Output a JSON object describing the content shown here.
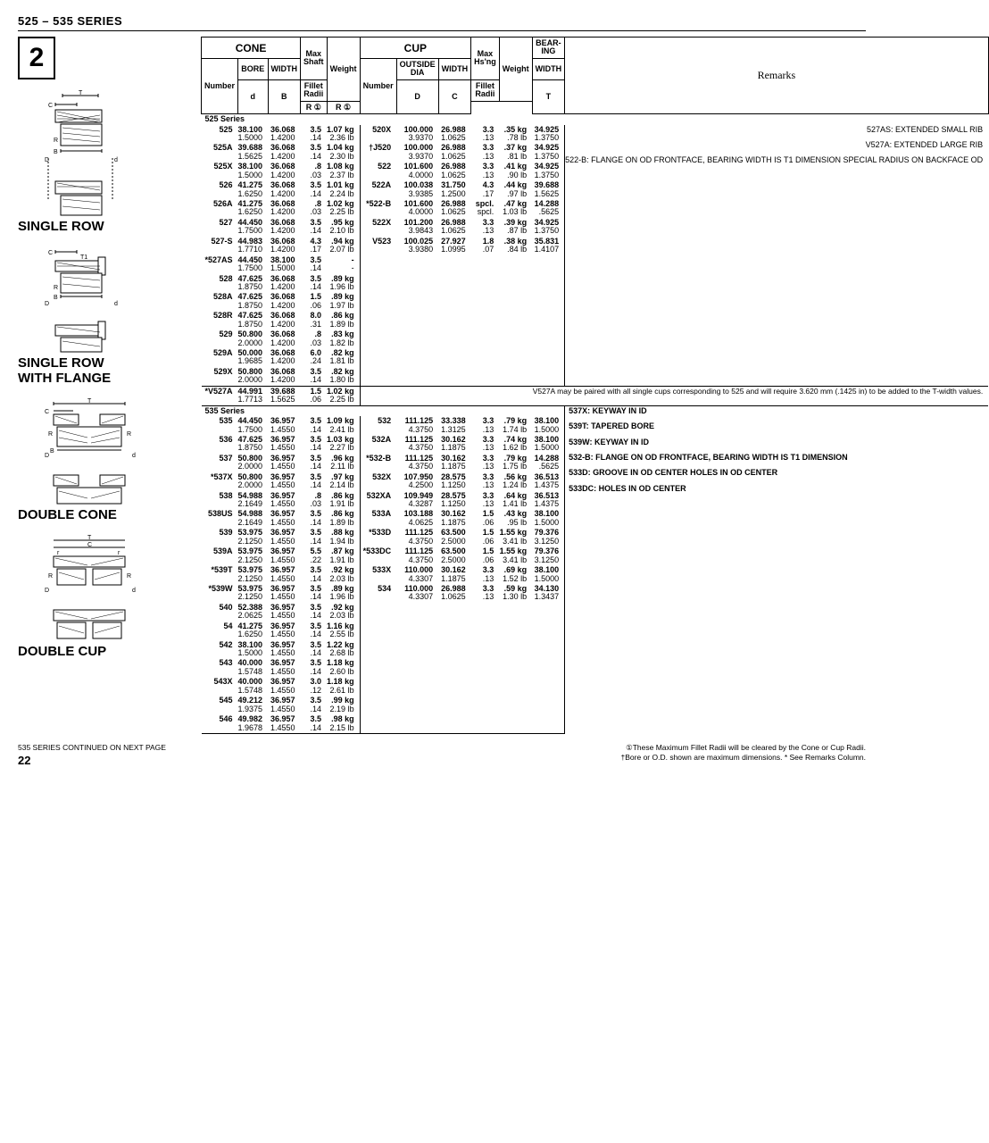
{
  "page": {
    "series_title": "525 – 535 SERIES",
    "badge": "2",
    "footer_left": "535 SERIES CONTINUED ON NEXT PAGE",
    "footer_right1": "①These Maximum Fillet Radii will be cleared by the Cone or Cup Radii.",
    "footer_right2": "†Bore or O.D. shown are maximum dimensions.   * See Remarks Column.",
    "pagenum": "22"
  },
  "diagrams": {
    "single_row": "SINGLE ROW",
    "single_row_flange": "SINGLE ROW\nWITH FLANGE",
    "double_cone": "DOUBLE CONE",
    "double_cup": "DOUBLE CUP"
  },
  "headers": {
    "cone": "CONE",
    "cup": "CUP",
    "bearing": "BEAR-\nING",
    "remarks": "Remarks",
    "number": "Number",
    "bore": "BORE",
    "width": "WIDTH",
    "max_shaft": "Max\nShaft",
    "fillet_radii": "Fillet\nRadii",
    "r": "R ①",
    "weight": "Weight",
    "outside_dia": "OUTSIDE\nDIA",
    "max_hsng": "Max\nHs'ng",
    "d": "d",
    "B": "B",
    "D": "D",
    "C": "C",
    "T": "T"
  },
  "flange_note": "V527A may be paired with all single cups corresponding to 525 and will require 3.620 mm (.1425 in) to be added to the T-width values.",
  "series525_label": "525 Series",
  "series535_label": "535 Series",
  "remarks525": [
    "527AS: EXTENDED SMALL RIB",
    "V527A: EXTENDED LARGE RIB",
    "522-B: FLANGE ON OD FRONTFACE, BEARING WIDTH IS T1 DIMENSION SPECIAL RADIUS ON BACKFACE OD"
  ],
  "remarks535": [
    "537X: KEYWAY IN ID",
    "539T: TAPERED BORE",
    "539W: KEYWAY IN ID",
    "532-B: FLANGE ON OD FRONTFACE, BEARING WIDTH IS T1 DIMENSION",
    "533D: GROOVE IN OD CENTER HOLES IN OD CENTER",
    "533DC: HOLES IN OD CENTER"
  ],
  "rows525": [
    {
      "cone": "525",
      "bore": [
        "38.100",
        "1.5000"
      ],
      "w": [
        "36.068",
        "1.4200"
      ],
      "r": [
        "3.5",
        ".14"
      ],
      "wt": [
        "1.07 kg",
        "2.36 lb"
      ],
      "cup": "520X",
      "od": [
        "100.000",
        "3.9370"
      ],
      "cw": [
        "26.988",
        "1.0625"
      ],
      "hr": [
        "3.3",
        ".13"
      ],
      "wt2": [
        ".35 kg",
        ".78 lb"
      ],
      "T": [
        "34.925",
        "1.3750"
      ]
    },
    {
      "cone": "525A",
      "bore": [
        "39.688",
        "1.5625"
      ],
      "w": [
        "36.068",
        "1.4200"
      ],
      "r": [
        "3.5",
        ".14"
      ],
      "wt": [
        "1.04 kg",
        "2.30 lb"
      ],
      "cup": "†J520",
      "od": [
        "100.000",
        "3.9370"
      ],
      "cw": [
        "26.988",
        "1.0625"
      ],
      "hr": [
        "3.3",
        ".13"
      ],
      "wt2": [
        ".37 kg",
        ".81 lb"
      ],
      "T": [
        "34.925",
        "1.3750"
      ]
    },
    {
      "cone": "525X",
      "bore": [
        "38.100",
        "1.5000"
      ],
      "w": [
        "36.068",
        "1.4200"
      ],
      "r": [
        ".8",
        ".03"
      ],
      "wt": [
        "1.08 kg",
        "2.37 lb"
      ],
      "cup": "522",
      "od": [
        "101.600",
        "4.0000"
      ],
      "cw": [
        "26.988",
        "1.0625"
      ],
      "hr": [
        "3.3",
        ".13"
      ],
      "wt2": [
        ".41 kg",
        ".90 lb"
      ],
      "T": [
        "34.925",
        "1.3750"
      ]
    },
    {
      "cone": "526",
      "bore": [
        "41.275",
        "1.6250"
      ],
      "w": [
        "36.068",
        "1.4200"
      ],
      "r": [
        "3.5",
        ".14"
      ],
      "wt": [
        "1.01 kg",
        "2.24 lb"
      ],
      "cup": "522A",
      "od": [
        "100.038",
        "3.9385"
      ],
      "cw": [
        "31.750",
        "1.2500"
      ],
      "hr": [
        "4.3",
        ".17"
      ],
      "wt2": [
        ".44 kg",
        ".97 lb"
      ],
      "T": [
        "39.688",
        "1.5625"
      ]
    },
    {
      "cone": "526A",
      "bore": [
        "41.275",
        "1.6250"
      ],
      "w": [
        "36.068",
        "1.4200"
      ],
      "r": [
        ".8",
        ".03"
      ],
      "wt": [
        "1.02 kg",
        "2.25 lb"
      ],
      "cup": "*522-B",
      "od": [
        "101.600",
        "4.0000"
      ],
      "cw": [
        "26.988",
        "1.0625"
      ],
      "hr": [
        "spcl.",
        "spcl."
      ],
      "wt2": [
        ".47 kg",
        "1.03 lb"
      ],
      "T": [
        "14.288",
        ".5625"
      ]
    },
    {
      "cone": "527",
      "bore": [
        "44.450",
        "1.7500"
      ],
      "w": [
        "36.068",
        "1.4200"
      ],
      "r": [
        "3.5",
        ".14"
      ],
      "wt": [
        ".95 kg",
        "2.10 lb"
      ],
      "cup": "522X",
      "od": [
        "101.200",
        "3.9843"
      ],
      "cw": [
        "26.988",
        "1.0625"
      ],
      "hr": [
        "3.3",
        ".13"
      ],
      "wt2": [
        ".39 kg",
        ".87 lb"
      ],
      "T": [
        "34.925",
        "1.3750"
      ]
    },
    {
      "cone": "527-S",
      "bore": [
        "44.983",
        "1.7710"
      ],
      "w": [
        "36.068",
        "1.4200"
      ],
      "r": [
        "4.3",
        ".17"
      ],
      "wt": [
        ".94 kg",
        "2.07 lb"
      ],
      "cup": "V523",
      "od": [
        "100.025",
        "3.9380"
      ],
      "cw": [
        "27.927",
        "1.0995"
      ],
      "hr": [
        "1.8",
        ".07"
      ],
      "wt2": [
        ".38 kg",
        ".84 lb"
      ],
      "T": [
        "35.831",
        "1.4107"
      ]
    },
    {
      "cone": "*527AS",
      "bore": [
        "44.450",
        "1.7500"
      ],
      "w": [
        "38.100",
        "1.5000"
      ],
      "r": [
        "3.5",
        ".14"
      ],
      "wt": [
        "-",
        "-"
      ]
    },
    {
      "cone": "528",
      "bore": [
        "47.625",
        "1.8750"
      ],
      "w": [
        "36.068",
        "1.4200"
      ],
      "r": [
        "3.5",
        ".14"
      ],
      "wt": [
        ".89 kg",
        "1.96 lb"
      ]
    },
    {
      "cone": "528A",
      "bore": [
        "47.625",
        "1.8750"
      ],
      "w": [
        "36.068",
        "1.4200"
      ],
      "r": [
        "1.5",
        ".06"
      ],
      "wt": [
        ".89 kg",
        "1.97 lb"
      ]
    },
    {
      "cone": "528R",
      "bore": [
        "47.625",
        "1.8750"
      ],
      "w": [
        "36.068",
        "1.4200"
      ],
      "r": [
        "8.0",
        ".31"
      ],
      "wt": [
        ".86 kg",
        "1.89 lb"
      ]
    },
    {
      "cone": "529",
      "bore": [
        "50.800",
        "2.0000"
      ],
      "w": [
        "36.068",
        "1.4200"
      ],
      "r": [
        ".8",
        ".03"
      ],
      "wt": [
        ".83 kg",
        "1.82 lb"
      ]
    },
    {
      "cone": "529A",
      "bore": [
        "50.000",
        "1.9685"
      ],
      "w": [
        "36.068",
        "1.4200"
      ],
      "r": [
        "6.0",
        ".24"
      ],
      "wt": [
        ".82 kg",
        "1.81 lb"
      ]
    },
    {
      "cone": "529X",
      "bore": [
        "50.800",
        "2.0000"
      ],
      "w": [
        "36.068",
        "1.4200"
      ],
      "r": [
        "3.5",
        ".14"
      ],
      "wt": [
        ".82 kg",
        "1.80 lb"
      ]
    }
  ],
  "row_v527a": {
    "cone": "*V527A",
    "bore": [
      "44.991",
      "1.7713"
    ],
    "w": [
      "39.688",
      "1.5625"
    ],
    "r": [
      "1.5",
      ".06"
    ],
    "wt": [
      "1.02 kg",
      "2.25 lb"
    ]
  },
  "rows535": [
    {
      "cone": "535",
      "bore": [
        "44.450",
        "1.7500"
      ],
      "w": [
        "36.957",
        "1.4550"
      ],
      "r": [
        "3.5",
        ".14"
      ],
      "wt": [
        "1.09 kg",
        "2.41 lb"
      ],
      "cup": "532",
      "od": [
        "111.125",
        "4.3750"
      ],
      "cw": [
        "33.338",
        "1.3125"
      ],
      "hr": [
        "3.3",
        ".13"
      ],
      "wt2": [
        ".79 kg",
        "1.74 lb"
      ],
      "T": [
        "38.100",
        "1.5000"
      ]
    },
    {
      "cone": "536",
      "bore": [
        "47.625",
        "1.8750"
      ],
      "w": [
        "36.957",
        "1.4550"
      ],
      "r": [
        "3.5",
        ".14"
      ],
      "wt": [
        "1.03 kg",
        "2.27 lb"
      ],
      "cup": "532A",
      "od": [
        "111.125",
        "4.3750"
      ],
      "cw": [
        "30.162",
        "1.1875"
      ],
      "hr": [
        "3.3",
        ".13"
      ],
      "wt2": [
        ".74 kg",
        "1.62 lb"
      ],
      "T": [
        "38.100",
        "1.5000"
      ]
    },
    {
      "cone": "537",
      "bore": [
        "50.800",
        "2.0000"
      ],
      "w": [
        "36.957",
        "1.4550"
      ],
      "r": [
        "3.5",
        ".14"
      ],
      "wt": [
        ".96 kg",
        "2.11 lb"
      ],
      "cup": "*532-B",
      "od": [
        "111.125",
        "4.3750"
      ],
      "cw": [
        "30.162",
        "1.1875"
      ],
      "hr": [
        "3.3",
        ".13"
      ],
      "wt2": [
        ".79 kg",
        "1.75 lb"
      ],
      "T": [
        "14.288",
        ".5625"
      ]
    },
    {
      "cone": "*537X",
      "bore": [
        "50.800",
        "2.0000"
      ],
      "w": [
        "36.957",
        "1.4550"
      ],
      "r": [
        "3.5",
        ".14"
      ],
      "wt": [
        ".97 kg",
        "2.14 lb"
      ],
      "cup": "532X",
      "od": [
        "107.950",
        "4.2500"
      ],
      "cw": [
        "28.575",
        "1.1250"
      ],
      "hr": [
        "3.3",
        ".13"
      ],
      "wt2": [
        ".56 kg",
        "1.24 lb"
      ],
      "T": [
        "36.513",
        "1.4375"
      ]
    },
    {
      "cone": "538",
      "bore": [
        "54.988",
        "2.1649"
      ],
      "w": [
        "36.957",
        "1.4550"
      ],
      "r": [
        ".8",
        ".03"
      ],
      "wt": [
        ".86 kg",
        "1.91 lb"
      ],
      "cup": "532XA",
      "od": [
        "109.949",
        "4.3287"
      ],
      "cw": [
        "28.575",
        "1.1250"
      ],
      "hr": [
        "3.3",
        ".13"
      ],
      "wt2": [
        ".64 kg",
        "1.41 lb"
      ],
      "T": [
        "36.513",
        "1.4375"
      ]
    },
    {
      "cone": "538US",
      "bore": [
        "54.988",
        "2.1649"
      ],
      "w": [
        "36.957",
        "1.4550"
      ],
      "r": [
        "3.5",
        ".14"
      ],
      "wt": [
        ".86 kg",
        "1.89 lb"
      ],
      "cup": "533A",
      "od": [
        "103.188",
        "4.0625"
      ],
      "cw": [
        "30.162",
        "1.1875"
      ],
      "hr": [
        "1.5",
        ".06"
      ],
      "wt2": [
        ".43 kg",
        ".95 lb"
      ],
      "T": [
        "38.100",
        "1.5000"
      ]
    },
    {
      "cone": "539",
      "bore": [
        "53.975",
        "2.1250"
      ],
      "w": [
        "36.957",
        "1.4550"
      ],
      "r": [
        "3.5",
        ".14"
      ],
      "wt": [
        ".88 kg",
        "1.94 lb"
      ],
      "cup": "*533D",
      "od": [
        "111.125",
        "4.3750"
      ],
      "cw": [
        "63.500",
        "2.5000"
      ],
      "hr": [
        "1.5",
        ".06"
      ],
      "wt2": [
        "1.55 kg",
        "3.41 lb"
      ],
      "T": [
        "79.376",
        "3.1250"
      ]
    },
    {
      "cone": "539A",
      "bore": [
        "53.975",
        "2.1250"
      ],
      "w": [
        "36.957",
        "1.4550"
      ],
      "r": [
        "5.5",
        ".22"
      ],
      "wt": [
        ".87 kg",
        "1.91 lb"
      ],
      "cup": "*533DC",
      "od": [
        "111.125",
        "4.3750"
      ],
      "cw": [
        "63.500",
        "2.5000"
      ],
      "hr": [
        "1.5",
        ".06"
      ],
      "wt2": [
        "1.55 kg",
        "3.41 lb"
      ],
      "T": [
        "79.376",
        "3.1250"
      ]
    },
    {
      "cone": "*539T",
      "bore": [
        "53.975",
        "2.1250"
      ],
      "w": [
        "36.957",
        "1.4550"
      ],
      "r": [
        "3.5",
        ".14"
      ],
      "wt": [
        ".92 kg",
        "2.03 lb"
      ],
      "cup": "533X",
      "od": [
        "110.000",
        "4.3307"
      ],
      "cw": [
        "30.162",
        "1.1875"
      ],
      "hr": [
        "3.3",
        ".13"
      ],
      "wt2": [
        ".69 kg",
        "1.52 lb"
      ],
      "T": [
        "38.100",
        "1.5000"
      ]
    },
    {
      "cone": "*539W",
      "bore": [
        "53.975",
        "2.1250"
      ],
      "w": [
        "36.957",
        "1.4550"
      ],
      "r": [
        "3.5",
        ".14"
      ],
      "wt": [
        ".89 kg",
        "1.96 lb"
      ],
      "cup": "534",
      "od": [
        "110.000",
        "4.3307"
      ],
      "cw": [
        "26.988",
        "1.0625"
      ],
      "hr": [
        "3.3",
        ".13"
      ],
      "wt2": [
        ".59 kg",
        "1.30 lb"
      ],
      "T": [
        "34.130",
        "1.3437"
      ]
    },
    {
      "cone": "540",
      "bore": [
        "52.388",
        "2.0625"
      ],
      "w": [
        "36.957",
        "1.4550"
      ],
      "r": [
        "3.5",
        ".14"
      ],
      "wt": [
        ".92 kg",
        "2.03 lb"
      ]
    },
    {
      "cone": "54",
      "bore": [
        "41.275",
        "1.6250"
      ],
      "w": [
        "36.957",
        "1.4550"
      ],
      "r": [
        "3.5",
        ".14"
      ],
      "wt": [
        "1.16 kg",
        "2.55 lb"
      ]
    },
    {
      "cone": "542",
      "bore": [
        "38.100",
        "1.5000"
      ],
      "w": [
        "36.957",
        "1.4550"
      ],
      "r": [
        "3.5",
        ".14"
      ],
      "wt": [
        "1.22 kg",
        "2.68 lb"
      ]
    },
    {
      "cone": "543",
      "bore": [
        "40.000",
        "1.5748"
      ],
      "w": [
        "36.957",
        "1.4550"
      ],
      "r": [
        "3.5",
        ".14"
      ],
      "wt": [
        "1.18 kg",
        "2.60 lb"
      ]
    },
    {
      "cone": "543X",
      "bore": [
        "40.000",
        "1.5748"
      ],
      "w": [
        "36.957",
        "1.4550"
      ],
      "r": [
        "3.0",
        ".12"
      ],
      "wt": [
        "1.18 kg",
        "2.61 lb"
      ]
    },
    {
      "cone": "545",
      "bore": [
        "49.212",
        "1.9375"
      ],
      "w": [
        "36.957",
        "1.4550"
      ],
      "r": [
        "3.5",
        ".14"
      ],
      "wt": [
        ".99 kg",
        "2.19 lb"
      ]
    },
    {
      "cone": "546",
      "bore": [
        "49.982",
        "1.9678"
      ],
      "w": [
        "36.957",
        "1.4550"
      ],
      "r": [
        "3.5",
        ".14"
      ],
      "wt": [
        ".98 kg",
        "2.15 lb"
      ]
    }
  ]
}
